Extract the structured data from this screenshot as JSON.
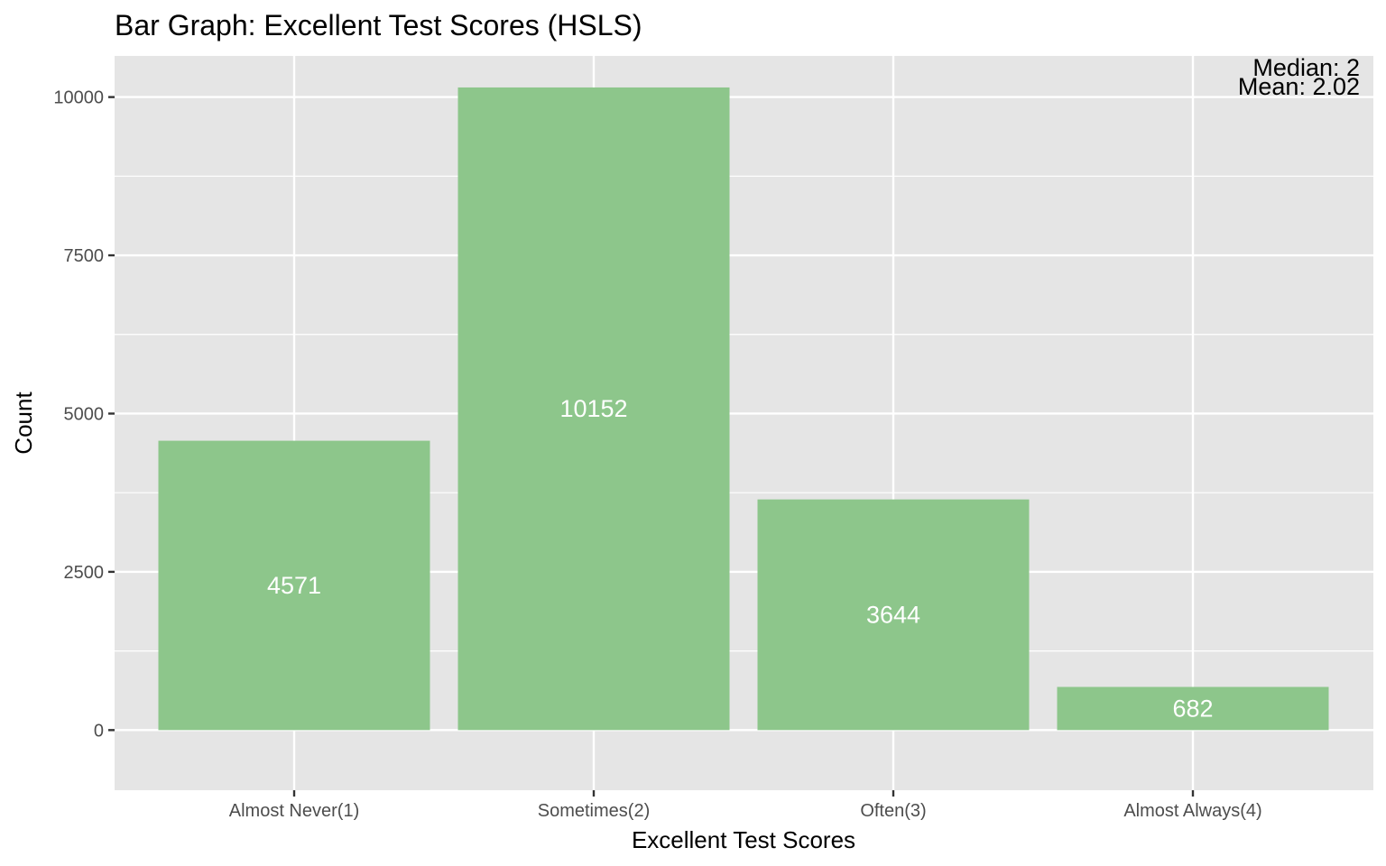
{
  "chart_data": {
    "type": "bar",
    "title": "Bar Graph: Excellent Test Scores (HSLS)",
    "xlabel": "Excellent Test Scores",
    "ylabel": "Count",
    "categories": [
      "Almost Never(1)",
      "Sometimes(2)",
      "Often(3)",
      "Almost Always(4)"
    ],
    "values": [
      4571,
      10152,
      3644,
      682
    ],
    "data_labels": [
      "4571",
      "10152",
      "3644",
      "682"
    ],
    "ylim": [
      -950,
      10650
    ],
    "yticks": [
      0,
      2500,
      5000,
      7500,
      10000
    ],
    "ytick_labels": [
      "0",
      "2500",
      "5000",
      "7500",
      "10000"
    ],
    "annotations": [
      "Median: 2",
      "Mean: 2.02"
    ],
    "grid": true,
    "legend": "none",
    "colors": {
      "bar": "#8dc68b",
      "panel": "#e5e5e5",
      "grid": "#ffffff",
      "bar_label": "#ffffff",
      "tick": "#333333"
    }
  }
}
